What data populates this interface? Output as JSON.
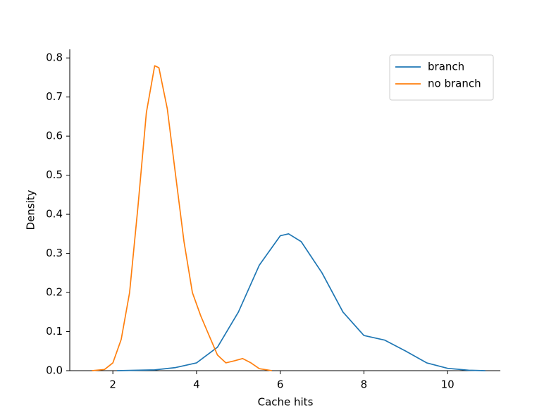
{
  "chart_data": {
    "type": "line",
    "x_label": "Cache hits",
    "y_label": "Density",
    "xlim": [
      0.97,
      11.26
    ],
    "ylim": [
      0,
      0.822
    ],
    "xticks": [
      2,
      4,
      6,
      8,
      10
    ],
    "yticks": [
      {
        "value": 0,
        "label": "0.0"
      },
      0.1,
      0.2,
      0.3,
      0.4,
      0.5,
      0.6,
      0.7,
      0.8
    ],
    "legend": "upper right",
    "series": [
      {
        "name": "branch",
        "color": "#1f77b4",
        "x": [
          2.1,
          3,
          3.5,
          4,
          4.5,
          5,
          5.5,
          6,
          6.2,
          6.5,
          7,
          7.5,
          8,
          8.5,
          9,
          9.5,
          10,
          10.5,
          10.9
        ],
        "values": [
          0,
          0.002,
          0.008,
          0.02,
          0.06,
          0.15,
          0.27,
          0.345,
          0.35,
          0.33,
          0.25,
          0.15,
          0.09,
          0.078,
          0.05,
          0.02,
          0.006,
          0.001,
          0
        ]
      },
      {
        "name": "no branch",
        "color": "#ff7f0e",
        "x": [
          1.5,
          1.8,
          2.0,
          2.2,
          2.4,
          2.6,
          2.8,
          3.0,
          3.1,
          3.3,
          3.5,
          3.7,
          3.9,
          4.1,
          4.3,
          4.5,
          4.7,
          4.9,
          5.1,
          5.3,
          5.5,
          5.8
        ],
        "values": [
          0,
          0.003,
          0.02,
          0.08,
          0.2,
          0.42,
          0.66,
          0.78,
          0.775,
          0.67,
          0.5,
          0.33,
          0.2,
          0.14,
          0.09,
          0.04,
          0.02,
          0.025,
          0.031,
          0.02,
          0.005,
          0
        ]
      }
    ]
  }
}
